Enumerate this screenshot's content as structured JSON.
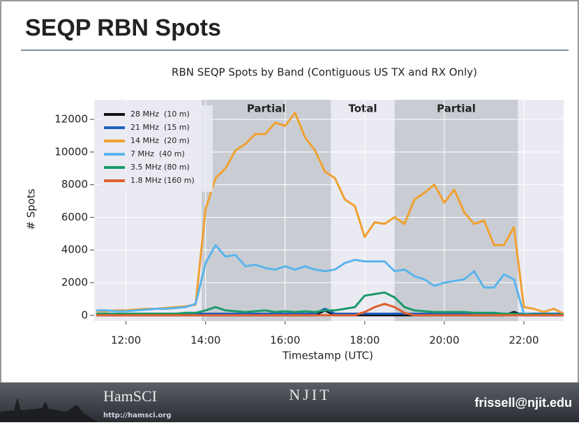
{
  "slide": {
    "title": "SEQP RBN Spots",
    "footer": {
      "logo": "HamSCI",
      "url": "http://hamsci.org",
      "institution": "NJIT",
      "email": "frissell@njit.edu"
    }
  },
  "chart_data": {
    "type": "line",
    "title": "RBN SEQP Spots by Band (Contiguous US TX and RX Only)",
    "x_label": "Timestamp (UTC)",
    "y_label": "# Spots",
    "x": [
      11.25,
      11.5,
      11.75,
      12,
      12.25,
      12.5,
      12.75,
      13,
      13.25,
      13.5,
      13.75,
      14,
      14.25,
      14.5,
      14.75,
      15,
      15.25,
      15.5,
      15.75,
      16,
      16.25,
      16.5,
      16.75,
      17,
      17.25,
      17.5,
      17.75,
      18,
      18.25,
      18.5,
      18.75,
      19,
      19.25,
      19.5,
      19.75,
      20,
      20.25,
      20.5,
      20.75,
      21,
      21.25,
      21.5,
      21.75,
      22,
      22.25,
      22.5,
      22.75,
      23
    ],
    "xlim": [
      11.2,
      23.0
    ],
    "xticks": [
      {
        "value": 12,
        "label": "12:00"
      },
      {
        "value": 14,
        "label": "14:00"
      },
      {
        "value": 16,
        "label": "16:00"
      },
      {
        "value": 18,
        "label": "18:00"
      },
      {
        "value": 20,
        "label": "20:00"
      },
      {
        "value": 22,
        "label": "22:00"
      }
    ],
    "ylim": [
      -350,
      13200
    ],
    "yticks": [
      0,
      2000,
      4000,
      6000,
      8000,
      10000,
      12000
    ],
    "grid": true,
    "legend": "upper left",
    "regions": [
      {
        "start": 13.9,
        "end": 17.15,
        "label": "Partial"
      },
      {
        "start": 17.15,
        "end": 18.75,
        "label": "Total"
      },
      {
        "start": 18.75,
        "end": 21.85,
        "label": "Partial"
      }
    ],
    "series": [
      {
        "name": "28 MHz  (10 m)",
        "color": "#111111",
        "values": [
          0,
          0,
          0,
          0,
          0,
          0,
          0,
          0,
          0,
          0,
          0,
          0,
          0,
          0,
          0,
          0,
          0,
          0,
          0,
          0,
          0,
          0,
          0,
          300,
          0,
          0,
          0,
          0,
          0,
          0,
          0,
          0,
          0,
          0,
          0,
          0,
          0,
          0,
          0,
          0,
          0,
          0,
          200,
          0,
          0,
          0,
          0,
          0
        ]
      },
      {
        "name": "21 MHz  (15 m)",
        "color": "#1f5fbf",
        "values": [
          100,
          100,
          100,
          100,
          100,
          100,
          100,
          100,
          100,
          100,
          100,
          100,
          100,
          100,
          100,
          100,
          100,
          100,
          100,
          100,
          100,
          100,
          100,
          400,
          100,
          100,
          100,
          100,
          100,
          100,
          100,
          100,
          100,
          100,
          100,
          100,
          100,
          100,
          100,
          100,
          100,
          100,
          100,
          100,
          100,
          100,
          100,
          100
        ]
      },
      {
        "name": "14 MHz  (20 m)",
        "color": "#f0a030",
        "values": [
          250,
          250,
          300,
          300,
          350,
          400,
          400,
          450,
          500,
          550,
          650,
          6500,
          8400,
          9000,
          10100,
          10500,
          11100,
          11100,
          11800,
          11600,
          12400,
          10900,
          10100,
          8800,
          8400,
          7100,
          6700,
          4800,
          5700,
          5600,
          6000,
          5600,
          7100,
          7500,
          8000,
          6900,
          7700,
          6300,
          5600,
          5800,
          4300,
          4300,
          5400,
          500,
          400,
          200,
          400,
          100
        ]
      },
      {
        "name": "7 MHz  (40 m)",
        "color": "#5ab4ec",
        "values": [
          300,
          300,
          250,
          250,
          300,
          350,
          400,
          400,
          450,
          500,
          700,
          3200,
          4300,
          3600,
          3700,
          3000,
          3100,
          2900,
          2800,
          3000,
          2800,
          3000,
          2800,
          2700,
          2800,
          3200,
          3400,
          3300,
          3300,
          3300,
          2700,
          2800,
          2400,
          2200,
          1800,
          2000,
          2100,
          2200,
          2700,
          1700,
          1700,
          2500,
          2200,
          100,
          50,
          50,
          50,
          50
        ]
      },
      {
        "name": "3.5 MHz (80 m)",
        "color": "#1a9a6a",
        "values": [
          100,
          100,
          100,
          100,
          100,
          100,
          100,
          100,
          100,
          150,
          150,
          300,
          500,
          300,
          250,
          200,
          250,
          300,
          200,
          250,
          200,
          250,
          200,
          300,
          300,
          400,
          500,
          1200,
          1300,
          1400,
          1100,
          500,
          300,
          250,
          200,
          200,
          200,
          200,
          150,
          150,
          150,
          100,
          100,
          50,
          50,
          50,
          50,
          50
        ]
      },
      {
        "name": "1.8 MHz (160 m)",
        "color": "#e06030",
        "values": [
          0,
          0,
          0,
          0,
          0,
          0,
          0,
          0,
          0,
          0,
          0,
          0,
          0,
          0,
          0,
          0,
          0,
          0,
          0,
          0,
          0,
          0,
          0,
          0,
          0,
          0,
          0,
          200,
          500,
          700,
          500,
          150,
          0,
          0,
          0,
          0,
          0,
          0,
          0,
          0,
          0,
          0,
          0,
          0,
          0,
          0,
          0,
          0
        ]
      }
    ]
  }
}
